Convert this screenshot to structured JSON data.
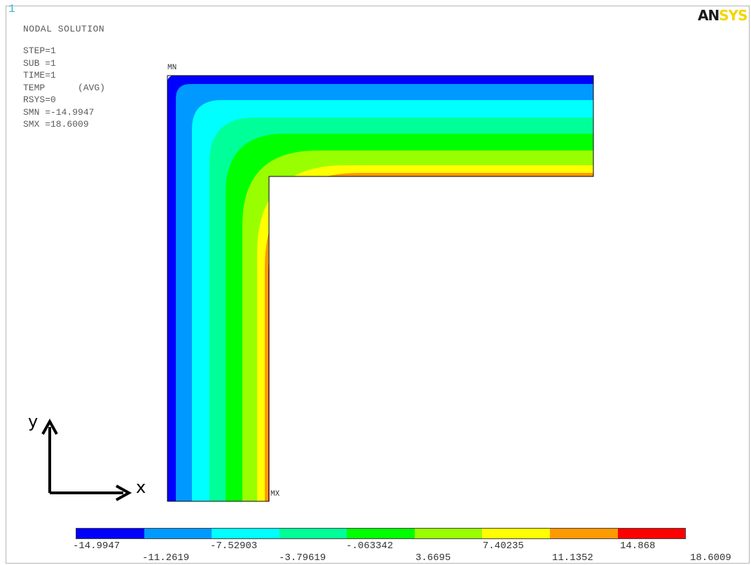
{
  "window_number": "1",
  "title": "NODAL SOLUTION",
  "info_lines": [
    "STEP=1",
    "SUB =1",
    "TIME=1",
    "TEMP      (AVG)",
    "RSYS=0",
    "SMN =-14.9947",
    "SMX =18.6009"
  ],
  "logo": {
    "part1": "AN",
    "part2": "SYS"
  },
  "labels": {
    "mn": "MN",
    "mx": "MX",
    "x_axis": "x",
    "y_axis": "y"
  },
  "legend": {
    "colors": [
      "#0000ff",
      "#0099ff",
      "#00ffff",
      "#00ff99",
      "#00ff00",
      "#99ff00",
      "#ffff00",
      "#ff9900",
      "#ff0000"
    ],
    "upper_ticks": [
      "-14.9947",
      "-7.52903",
      "-.063342",
      "7.40235",
      "14.868"
    ],
    "lower_ticks": [
      "-11.2619",
      "-3.79619",
      "3.6695",
      "11.1352",
      "18.6009"
    ]
  },
  "contour_colors": [
    "#0000ff",
    "#0099ff",
    "#00ffff",
    "#00ff99",
    "#00ff00",
    "#99ff00",
    "#ffff00",
    "#ff9900",
    "#ff0000"
  ],
  "smn": -14.9947,
  "smx": 18.6009
}
